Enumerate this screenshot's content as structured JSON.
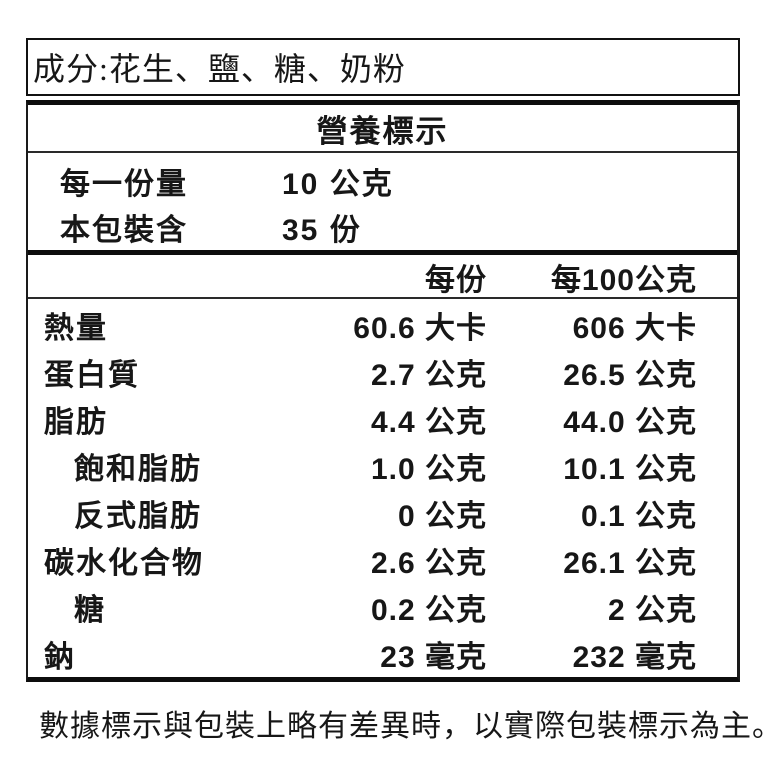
{
  "ingredients": {
    "text": "成分:花生、鹽、糖、奶粉"
  },
  "nutrition": {
    "title": "營養標示",
    "serving_rows": [
      {
        "label": "每一份量",
        "value": "10 公克"
      },
      {
        "label": "本包裝含",
        "value": "35 份"
      }
    ],
    "columns": {
      "per_serving": "每份",
      "per_100g": "每100公克"
    },
    "rows": [
      {
        "label": "熱量",
        "per_serving": "60.6 大卡",
        "per_100g": "606 大卡"
      },
      {
        "label": "蛋白質",
        "per_serving": "2.7 公克",
        "per_100g": "26.5 公克"
      },
      {
        "label": "脂肪",
        "per_serving": "4.4 公克",
        "per_100g": "44.0 公克"
      },
      {
        "label": "飽和脂肪",
        "per_serving": "1.0 公克",
        "per_100g": "10.1 公克"
      },
      {
        "label": "反式脂肪",
        "per_serving": "0 公克",
        "per_100g": "0.1 公克"
      },
      {
        "label": "碳水化合物",
        "per_serving": "2.6 公克",
        "per_100g": "26.1 公克"
      },
      {
        "label": "糖",
        "per_serving": "0.2 公克",
        "per_100g": "2 公克"
      },
      {
        "label": "鈉",
        "per_serving": "23 毫克",
        "per_100g": "232 毫克"
      }
    ]
  },
  "footnote": {
    "text": "數據標示與包裝上略有差異時，以實際包裝標示為主。"
  },
  "colors": {
    "background": "#ffffff",
    "text": "#171717",
    "border": "#111111"
  }
}
